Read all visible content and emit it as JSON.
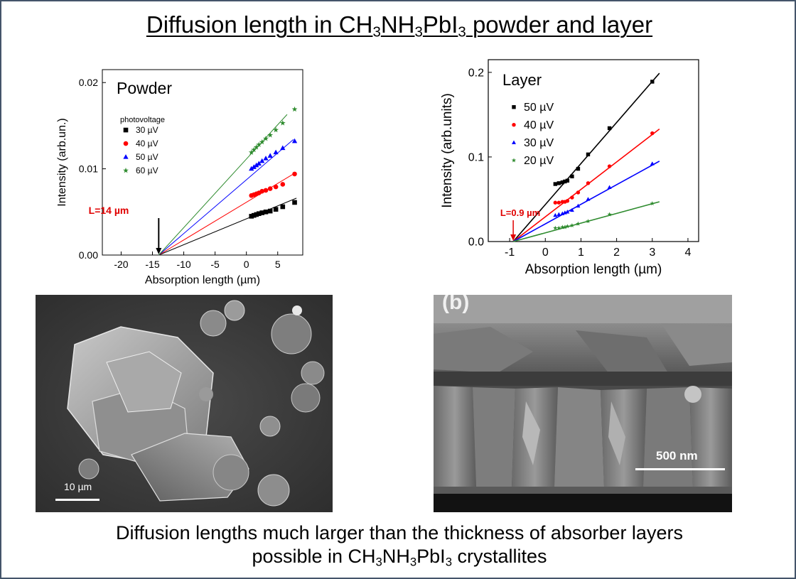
{
  "title": {
    "pre": "Diffusion length in CH",
    "s1": "3",
    "m1": "NH",
    "s2": "3",
    "m2": "PbI",
    "s3": "3",
    "post": " powder and layer"
  },
  "caption": {
    "line1": "Diffusion lengths much larger than the thickness of absorber layers",
    "l2pre": "possible in CH",
    "s1": "3",
    "m1": "NH",
    "s2": "3",
    "m2": "PbI",
    "s3": "3",
    "post": " crystallites"
  },
  "colors": {
    "black": "#000000",
    "red": "#ff0000",
    "blue": "#0000ff",
    "green": "#2e8b2e",
    "annot": "#e00000"
  },
  "chart_data": [
    {
      "type": "scatter",
      "panel_label": "Powder",
      "xlabel": "Absorption length (µm)",
      "ylabel": "Intensity (arb.un.)",
      "xlim": [
        -23,
        9
      ],
      "ylim": [
        0,
        0.0215
      ],
      "xticks": [
        -20,
        -15,
        -10,
        -5,
        0,
        5
      ],
      "yticks": [
        0.0,
        0.01,
        0.02
      ],
      "ytick_labels": [
        "0.00",
        "0.01",
        "0.02"
      ],
      "legend_title": "photovoltage",
      "legend_position": "left",
      "annotation": {
        "text": "L=14 µm",
        "x": -14
      },
      "series": [
        {
          "name": "30 µV",
          "marker": "square",
          "color": "#000000",
          "line_end": [
            8,
            0.0066
          ],
          "x": [
            0.8,
            1.2,
            1.6,
            2.0,
            2.5,
            3.1,
            3.8,
            4.7,
            5.8,
            7.7
          ],
          "y": [
            0.0045,
            0.0046,
            0.0047,
            0.0048,
            0.0049,
            0.005,
            0.0051,
            0.0053,
            0.0056,
            0.0061
          ]
        },
        {
          "name": "40 µV",
          "marker": "circle",
          "color": "#ff0000",
          "line_end": [
            7.5,
            0.0094
          ],
          "x": [
            0.8,
            1.2,
            1.6,
            2.0,
            2.5,
            3.1,
            3.8,
            4.7,
            5.8,
            7.7
          ],
          "y": [
            0.0069,
            0.007,
            0.0071,
            0.0072,
            0.0074,
            0.0075,
            0.0077,
            0.0079,
            0.0082,
            0.0094
          ]
        },
        {
          "name": "50 µV",
          "marker": "triangle",
          "color": "#0000ff",
          "line_end": [
            7.5,
            0.0134
          ],
          "x": [
            0.8,
            1.2,
            1.6,
            2.0,
            2.5,
            3.1,
            3.8,
            4.7,
            5.8,
            7.7
          ],
          "y": [
            0.01,
            0.0102,
            0.0104,
            0.0106,
            0.0109,
            0.0112,
            0.0115,
            0.0119,
            0.0124,
            0.0132
          ]
        },
        {
          "name": "60 µV",
          "marker": "star",
          "color": "#2e8b2e",
          "line_end": [
            6.5,
            0.0163
          ],
          "x": [
            0.8,
            1.2,
            1.6,
            2.0,
            2.5,
            3.1,
            3.8,
            4.7,
            5.8,
            7.7
          ],
          "y": [
            0.0119,
            0.0122,
            0.0125,
            0.0128,
            0.0131,
            0.0135,
            0.0139,
            0.0145,
            0.0153,
            0.0169
          ]
        }
      ]
    },
    {
      "type": "scatter",
      "panel_label": "Layer",
      "xlabel": "Absorption length (µm)",
      "ylabel": "Intensity (arb.units)",
      "xlim": [
        -1.6,
        4.3
      ],
      "ylim": [
        0,
        0.215
      ],
      "xticks": [
        -1,
        0,
        1,
        2,
        3,
        4
      ],
      "yticks": [
        0.0,
        0.1,
        0.2
      ],
      "ytick_labels": [
        "0.0",
        "0.1",
        "0.2"
      ],
      "legend_position": "top-left",
      "annotation": {
        "text": "L=0.9 µm",
        "x": -0.9
      },
      "series": [
        {
          "name": "50 µV",
          "marker": "square",
          "color": "#000000",
          "line_end": [
            3.2,
            0.199
          ],
          "x": [
            0.28,
            0.38,
            0.48,
            0.55,
            0.62,
            0.75,
            0.92,
            1.2,
            1.8,
            3.0
          ],
          "y": [
            0.068,
            0.069,
            0.07,
            0.071,
            0.072,
            0.077,
            0.086,
            0.103,
            0.134,
            0.189
          ]
        },
        {
          "name": "40 µV",
          "marker": "circle",
          "color": "#ff0000",
          "line_end": [
            3.2,
            0.133
          ],
          "x": [
            0.28,
            0.38,
            0.48,
            0.55,
            0.62,
            0.75,
            0.92,
            1.2,
            1.8,
            3.0
          ],
          "y": [
            0.046,
            0.046,
            0.047,
            0.047,
            0.048,
            0.052,
            0.058,
            0.069,
            0.089,
            0.128
          ]
        },
        {
          "name": "30 µV",
          "marker": "triangle",
          "color": "#0000ff",
          "line_end": [
            3.2,
            0.095
          ],
          "x": [
            0.28,
            0.38,
            0.48,
            0.55,
            0.62,
            0.75,
            0.92,
            1.2,
            1.8,
            3.0
          ],
          "y": [
            0.031,
            0.032,
            0.033,
            0.034,
            0.035,
            0.037,
            0.042,
            0.05,
            0.064,
            0.092
          ]
        },
        {
          "name": "20 µV",
          "marker": "star",
          "color": "#2e8b2e",
          "line_end": [
            3.2,
            0.047
          ],
          "x": [
            0.28,
            0.38,
            0.48,
            0.55,
            0.62,
            0.75,
            0.92,
            1.2,
            1.8,
            3.0
          ],
          "y": [
            0.016,
            0.016,
            0.017,
            0.017,
            0.018,
            0.019,
            0.021,
            0.024,
            0.032,
            0.045
          ]
        }
      ]
    }
  ],
  "sem_powder": {
    "scale_label": "10 µm"
  },
  "sem_layer": {
    "panel_label": "(b)",
    "scale_label": "500 nm"
  }
}
